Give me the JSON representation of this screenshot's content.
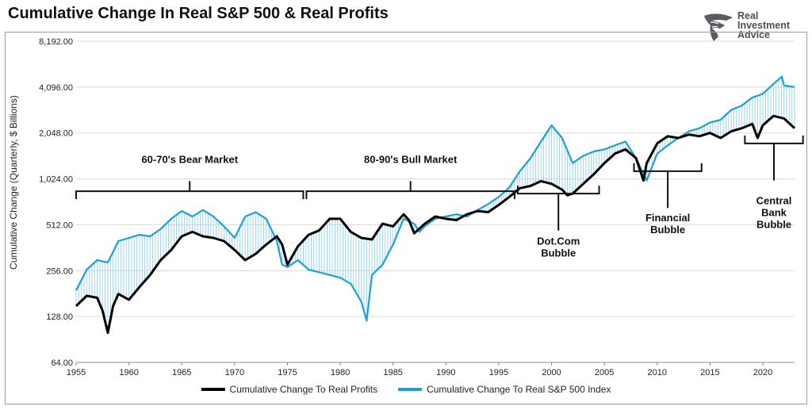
{
  "header": {
    "title": "Cumulative Change In Real S&P 500 & Real Profits"
  },
  "logo": {
    "name": "Real Investment Advice",
    "line1": "Real",
    "line2": "Investment",
    "line3": "Advice"
  },
  "colors": {
    "profits": "#000000",
    "sp500": "#1f9fd3",
    "fill": "#7dcbe6",
    "grid": "#d9d9d9",
    "annotation": "#111111"
  },
  "chart_data": {
    "type": "line",
    "title": "Cumulative Change In Real S&P 500 & Real Profits",
    "xlabel": "",
    "ylabel": "Cumulative Change (Quarterly, $ Billions)",
    "yscale": "log2",
    "xlim": [
      1955,
      2023
    ],
    "ylim": [
      64,
      8192
    ],
    "x_ticks": [
      1955,
      1960,
      1965,
      1970,
      1975,
      1980,
      1985,
      1990,
      1995,
      2000,
      2005,
      2010,
      2015,
      2020
    ],
    "x_tick_labels": [
      "1955",
      "1960",
      "1965",
      "1970",
      "1975",
      "1980",
      "1985",
      "1990",
      "1995",
      "2000",
      "2005",
      "2010",
      "2015",
      "2020"
    ],
    "y_ticks": [
      64,
      128,
      256,
      512,
      1024,
      2048,
      4096,
      8192
    ],
    "y_tick_labels": [
      "64.00",
      "128.00",
      "256.00",
      "512.00",
      "1,024.00",
      "2,048.00",
      "4,096.00",
      "8,192.00"
    ],
    "grid": true,
    "legend_position": "bottom",
    "series": [
      {
        "name": "Cumulative Change To Real Profits",
        "x": [
          1955,
          1956,
          1957,
          1957.5,
          1958,
          1958.5,
          1959,
          1960,
          1961,
          1962,
          1963,
          1964,
          1965,
          1966,
          1967,
          1968,
          1969,
          1970,
          1971,
          1972,
          1973,
          1974,
          1974.5,
          1975,
          1976,
          1977,
          1978,
          1979,
          1980,
          1981,
          1982,
          1983,
          1984,
          1985,
          1986,
          1986.5,
          1987,
          1988,
          1989,
          1990,
          1991,
          1992,
          1993,
          1994,
          1995,
          1996,
          1997,
          1998,
          1999,
          2000,
          2001,
          2001.5,
          2002,
          2003,
          2004,
          2005,
          2006,
          2007,
          2008,
          2008.7,
          2009,
          2010,
          2011,
          2012,
          2013,
          2014,
          2015,
          2016,
          2017,
          2018,
          2019,
          2019.5,
          2020,
          2021,
          2022,
          2023
        ],
        "values": [
          150,
          175,
          170,
          140,
          100,
          150,
          180,
          165,
          200,
          240,
          300,
          350,
          430,
          460,
          430,
          420,
          400,
          350,
          300,
          330,
          380,
          430,
          380,
          280,
          370,
          440,
          470,
          560,
          560,
          460,
          420,
          410,
          520,
          500,
          600,
          550,
          450,
          520,
          580,
          560,
          550,
          600,
          630,
          620,
          690,
          780,
          890,
          920,
          990,
          950,
          870,
          800,
          820,
          950,
          1100,
          1300,
          1500,
          1600,
          1400,
          1000,
          1300,
          1750,
          1950,
          1900,
          2000,
          1950,
          2050,
          1900,
          2100,
          2200,
          2350,
          1900,
          2300,
          2650,
          2550,
          2200
        ]
      },
      {
        "name": "Cumulative Change To Real S&P 500 Index",
        "x": [
          1955,
          1956,
          1957,
          1958,
          1959,
          1960,
          1961,
          1962,
          1963,
          1964,
          1965,
          1966,
          1967,
          1968,
          1969,
          1970,
          1971,
          1972,
          1973,
          1974,
          1974.5,
          1975,
          1976,
          1977,
          1978,
          1979,
          1980,
          1981,
          1982,
          1982.5,
          1983,
          1984,
          1985,
          1986,
          1987,
          1987.5,
          1988,
          1989,
          1990,
          1991,
          1992,
          1993,
          1994,
          1995,
          1996,
          1997,
          1998,
          1999,
          2000,
          2001,
          2002,
          2003,
          2004,
          2005,
          2006,
          2007,
          2008,
          2009,
          2010,
          2011,
          2012,
          2013,
          2014,
          2015,
          2016,
          2017,
          2018,
          2019,
          2020,
          2021,
          2021.8,
          2022,
          2023
        ],
        "values": [
          190,
          260,
          300,
          290,
          400,
          420,
          440,
          430,
          480,
          560,
          630,
          580,
          640,
          580,
          500,
          420,
          580,
          620,
          560,
          400,
          280,
          270,
          300,
          260,
          250,
          240,
          230,
          210,
          160,
          120,
          240,
          280,
          380,
          560,
          520,
          460,
          500,
          560,
          580,
          600,
          580,
          640,
          700,
          780,
          900,
          1150,
          1400,
          1800,
          2300,
          1900,
          1300,
          1450,
          1550,
          1600,
          1700,
          1800,
          1400,
          1000,
          1500,
          1700,
          1900,
          2100,
          2200,
          2400,
          2500,
          2900,
          3100,
          3500,
          3700,
          4300,
          4800,
          4200,
          4100
        ]
      }
    ],
    "annotations": [
      {
        "label": "60-70's Bear Market",
        "text": "60-70's Bear Market",
        "from": 1955,
        "to": 1976.5,
        "at_value": 850,
        "direction": "up",
        "tip_value": 990,
        "label_value": 1300
      },
      {
        "label": "80-90's Bull Market",
        "text": "80-90's Bull Market",
        "from": 1976.8,
        "to": 1996.5,
        "at_value": 850,
        "direction": "up",
        "tip_value": 990,
        "label_value": 1300
      },
      {
        "label": "Dot.Com Bubble",
        "text": "Dot.Com\nBubble",
        "from": 1996.8,
        "to": 2004.5,
        "at_value": 820,
        "direction": "down",
        "tip_value": 470,
        "label_value": 380
      },
      {
        "label": "Financial Bubble",
        "text": "Financial\nBubble",
        "from": 2007.8,
        "to": 2014.2,
        "at_value": 1150,
        "direction": "down",
        "tip_value": 660,
        "label_value": 540
      },
      {
        "label": "Central Bank Bubble",
        "text": "Central\nBank\nBubble",
        "from": 2018.3,
        "to": 2023.8,
        "at_value": 1750,
        "direction": "down",
        "tip_value": 1000,
        "label_value": 700
      }
    ]
  },
  "legend": {
    "profits_label": "Cumulative Change To Real Profits",
    "sp500_label": "Cumulative Change To Real S&P 500 Index"
  }
}
